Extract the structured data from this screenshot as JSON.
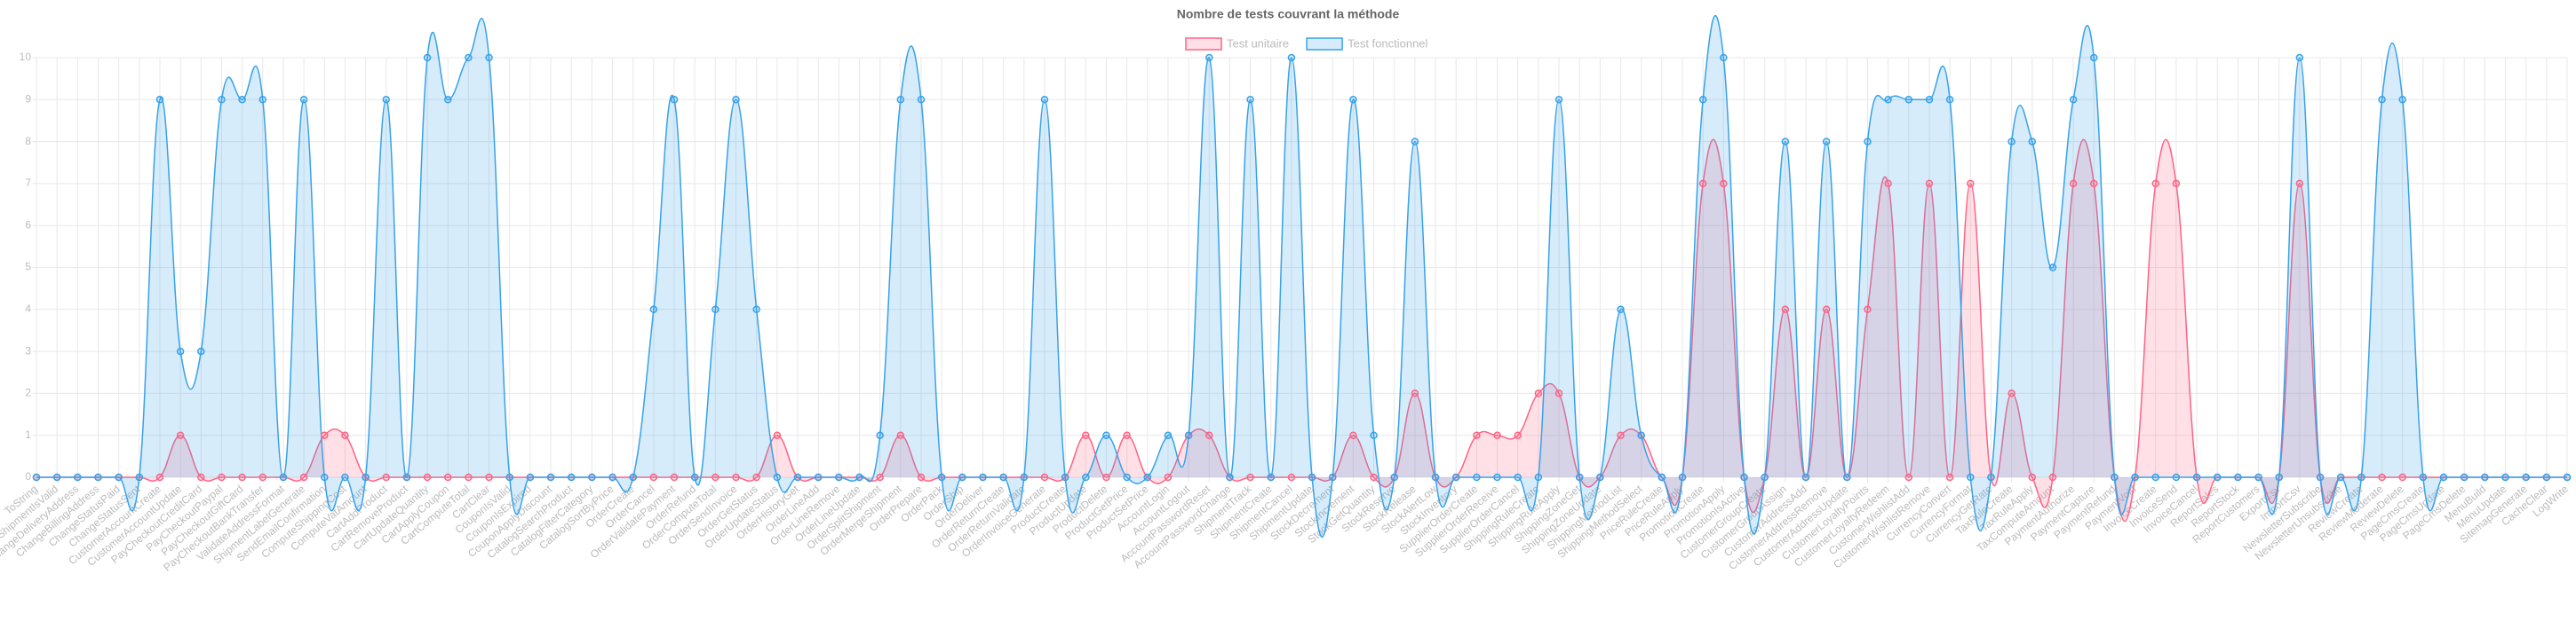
{
  "chart_data": {
    "type": "line",
    "title": "Nombre de tests couvrant la méthode",
    "categories": [
      "ToString",
      "ShipmentIsValid",
      "ChangeDeliveryAddress",
      "ChangeBillingAddress",
      "ChangeStatusPaid",
      "ChangeStatusSent",
      "CustomerAccountCreate",
      "CustomerAccountUpdate",
      "PayCheckoutCreditCard",
      "PayCheckoutPaypal",
      "PayCheckoutGiftCard",
      "PayCheckoutBankTransfer",
      "ValidateAddressFormat",
      "ShipmentLabelGenerate",
      "SendEmailConfirmation",
      "ComputeShippingCost",
      "ComputeVatAmount",
      "CartAddProduct",
      "CartRemoveProduct",
      "CartUpdateQuantity",
      "CartApplyCoupon",
      "CartComputeTotal",
      "CartClear",
      "CouponIsValid",
      "CouponIsExpired",
      "CouponApplyDiscount",
      "CatalogSearchProduct",
      "CatalogFilterCategory",
      "CatalogSortByPrice",
      "OrderCreate",
      "OrderCancel",
      "OrderValidatePayment",
      "OrderRefund",
      "OrderComputeTotal",
      "OrderSendInvoice",
      "OrderGetStatus",
      "OrderUpdateStatus",
      "OrderHistoryGet",
      "OrderLineAdd",
      "OrderLineRemove",
      "OrderLineUpdate",
      "OrderSplitShipment",
      "OrderMergeShipment",
      "OrderPrepare",
      "OrderPack",
      "OrderShip",
      "OrderDeliver",
      "OrderReturnCreate",
      "OrderReturnValidate",
      "OrderInvoiceGenerate",
      "ProductCreate",
      "ProductUpdate",
      "ProductDelete",
      "ProductGetPrice",
      "ProductSetPrice",
      "AccountLogin",
      "AccountLogout",
      "AccountPasswordReset",
      "AccountPasswordChange",
      "ShipmentTrack",
      "ShipmentCreate",
      "ShipmentCancel",
      "ShipmentUpdate",
      "StockDecrement",
      "StockIncrement",
      "StockGetQuantity",
      "StockReserve",
      "StockRelease",
      "StockAlertLow",
      "StockInventory",
      "SupplierOrderCreate",
      "SupplierOrderReceive",
      "SupplierOrderCancel",
      "ShippingRuleCreate",
      "ShippingRuleApply",
      "ShippingZoneGet",
      "ShippingZoneUpdate",
      "ShippingMethodList",
      "ShippingMethodSelect",
      "PriceRuleCreate",
      "PriceRuleApply",
      "PromotionCreate",
      "PromotionApply",
      "PromotionIsActive",
      "CustomerGroupCreate",
      "CustomerGroupAssign",
      "CustomerAddressAdd",
      "CustomerAddressRemove",
      "CustomerAddressUpdate",
      "CustomerLoyaltyPoints",
      "CustomerLoyaltyRedeem",
      "CustomerWishlistAdd",
      "CustomerWishlistRemove",
      "CurrencyConvert",
      "CurrencyFormat",
      "CurrencyGetRate",
      "TaxRuleCreate",
      "TaxRuleApply",
      "TaxComputeAmount",
      "PaymentAuthorize",
      "PaymentCapture",
      "PaymentRefund",
      "PaymentVoid",
      "InvoiceCreate",
      "InvoiceSend",
      "InvoiceCancel",
      "ReportSales",
      "ReportStock",
      "ReportCustomers",
      "ExportCsv",
      "ImportCsv",
      "NewsletterSubscribe",
      "NewsletterUnsubscribe",
      "ReviewCreate",
      "ReviewModerate",
      "ReviewDelete",
      "PageCmsCreate",
      "PageCmsUpdate",
      "PageCmsDelete",
      "MenuBuild",
      "MenuUpdate",
      "SitemapGenerate",
      "CacheClear",
      "LogWrite"
    ],
    "series": [
      {
        "name": "Test unitaire",
        "color": "#ff6384",
        "values": [
          0,
          0,
          0,
          0,
          0,
          0,
          0,
          1,
          0,
          0,
          0,
          0,
          0,
          0,
          1,
          1,
          0,
          0,
          0,
          0,
          0,
          0,
          0,
          0,
          0,
          0,
          0,
          0,
          0,
          0,
          0,
          0,
          0,
          0,
          0,
          0,
          1,
          0,
          0,
          0,
          0,
          0,
          1,
          0,
          0,
          0,
          0,
          0,
          0,
          0,
          0,
          1,
          0,
          1,
          0,
          0,
          1,
          1,
          0,
          0,
          0,
          0,
          0,
          0,
          1,
          0,
          0,
          2,
          0,
          0,
          1,
          1,
          1,
          2,
          2,
          0,
          0,
          1,
          1,
          0,
          0,
          7,
          7,
          0,
          0,
          4,
          0,
          4,
          0,
          4,
          7,
          0,
          7,
          0,
          7,
          0,
          2,
          0,
          0,
          7,
          7,
          0,
          0,
          7,
          7,
          0,
          0,
          0,
          0,
          0,
          7,
          0,
          0,
          0,
          0,
          0,
          0,
          0,
          0,
          0,
          0,
          0,
          0,
          0
        ]
      },
      {
        "name": "Test fonctionnel",
        "color": "#36a2eb",
        "values": [
          0,
          0,
          0,
          0,
          0,
          0,
          9,
          3,
          3,
          9,
          9,
          9,
          0,
          9,
          0,
          0,
          0,
          9,
          0,
          10,
          9,
          10,
          10,
          0,
          0,
          0,
          0,
          0,
          0,
          0,
          4,
          9,
          0,
          4,
          9,
          4,
          0,
          0,
          0,
          0,
          0,
          1,
          9,
          9,
          0,
          0,
          0,
          0,
          0,
          9,
          0,
          0,
          1,
          0,
          0,
          1,
          1,
          10,
          0,
          9,
          0,
          10,
          0,
          0,
          9,
          1,
          0,
          8,
          0,
          0,
          0,
          0,
          0,
          0,
          9,
          0,
          0,
          4,
          1,
          0,
          0,
          9,
          10,
          0,
          0,
          8,
          0,
          8,
          0,
          8,
          9,
          9,
          9,
          9,
          0,
          0,
          8,
          8,
          5,
          9,
          10,
          0,
          0,
          0,
          0,
          0,
          0,
          0,
          0,
          0,
          10,
          0,
          0,
          0,
          9,
          9,
          0,
          0,
          0,
          0,
          0,
          0,
          0,
          0
        ]
      }
    ],
    "ylim": [
      0,
      10
    ],
    "yticks": [
      0,
      1,
      2,
      3,
      4,
      5,
      6,
      7,
      8,
      9,
      10
    ],
    "grid": true,
    "legend": "top"
  }
}
